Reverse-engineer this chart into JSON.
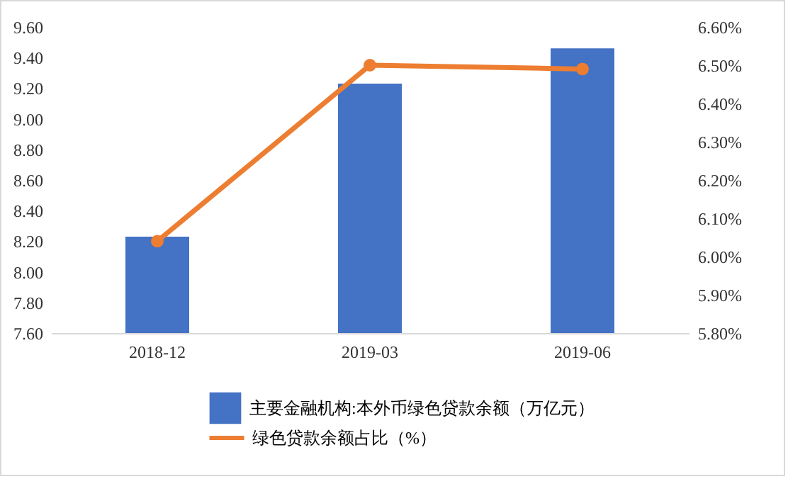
{
  "chart_data": {
    "type": "bar",
    "categories": [
      "2018-12",
      "2019-03",
      "2019-06"
    ],
    "series": [
      {
        "name": "主要金融机构:本外币绿色贷款余额（万亿元）",
        "color": "#4472c4",
        "values": [
          8.23,
          9.23,
          9.46
        ]
      },
      {
        "name": "绿色贷款余额占比（%）",
        "type": "line",
        "axis": "y2",
        "color": "#ed7d31",
        "values": [
          6.04,
          6.5,
          6.49
        ],
        "marker": "circle",
        "line_style": "solid"
      }
    ],
    "ylim": [
      7.6,
      9.6
    ],
    "yticks": [
      {
        "value": 7.6,
        "label": "7.60"
      },
      {
        "value": 7.8,
        "label": "7.80"
      },
      {
        "value": 8.0,
        "label": "8.00"
      },
      {
        "value": 8.2,
        "label": "8.20"
      },
      {
        "value": 8.4,
        "label": "8.40"
      },
      {
        "value": 8.6,
        "label": "8.60"
      },
      {
        "value": 8.8,
        "label": "8.80"
      },
      {
        "value": 9.0,
        "label": "9.00"
      },
      {
        "value": 9.2,
        "label": "9.20"
      },
      {
        "value": 9.4,
        "label": "9.40"
      },
      {
        "value": 9.6,
        "label": "9.60"
      }
    ],
    "y2lim": [
      5.8,
      6.6
    ],
    "y2ticks": [
      {
        "value": 5.8,
        "label": "5.80%"
      },
      {
        "value": 5.9,
        "label": "5.90%"
      },
      {
        "value": 6.0,
        "label": "6.00%"
      },
      {
        "value": 6.1,
        "label": "6.10%"
      },
      {
        "value": 6.2,
        "label": "6.20%"
      },
      {
        "value": 6.3,
        "label": "6.30%"
      },
      {
        "value": 6.4,
        "label": "6.40%"
      },
      {
        "value": 6.5,
        "label": "6.50%"
      },
      {
        "value": 6.6,
        "label": "6.60%"
      }
    ],
    "grid": false,
    "legend": "bottom"
  }
}
